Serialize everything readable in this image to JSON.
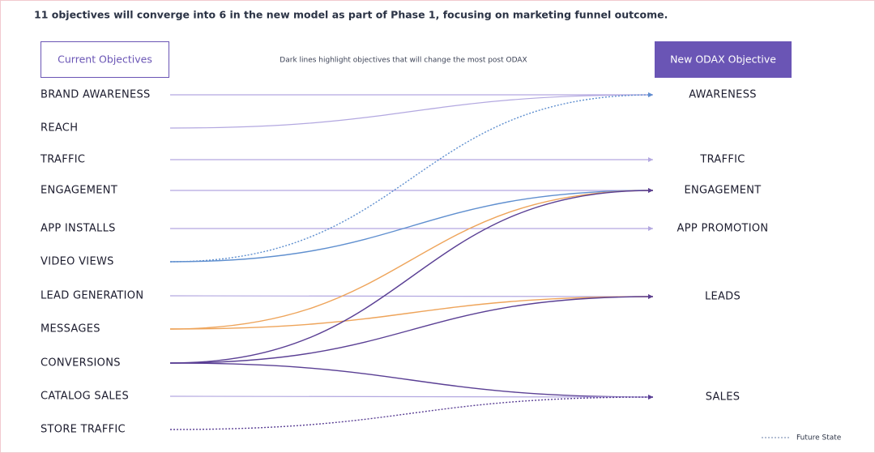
{
  "title": "11 objectives will converge into 6 in the new model as part of Phase 1, focusing on marketing funnel outcome.",
  "current_header": "Current Objectives",
  "new_header": "New ODAX Objective",
  "note": "Dark lines highlight objectives that will change the most post ODAX",
  "current_objectives": [
    "BRAND AWARENESS",
    "REACH",
    "TRAFFIC",
    "ENGAGEMENT",
    "APP INSTALLS",
    "VIDEO VIEWS",
    "LEAD GENERATION",
    "MESSAGES",
    "CONVERSIONS",
    "CATALOG SALES",
    "STORE TRAFFIC"
  ],
  "new_objectives": [
    "AWARENESS",
    "TRAFFIC",
    "ENGAGEMENT",
    "APP PROMOTION",
    "LEADS",
    "SALES"
  ],
  "legend": "Future State"
}
